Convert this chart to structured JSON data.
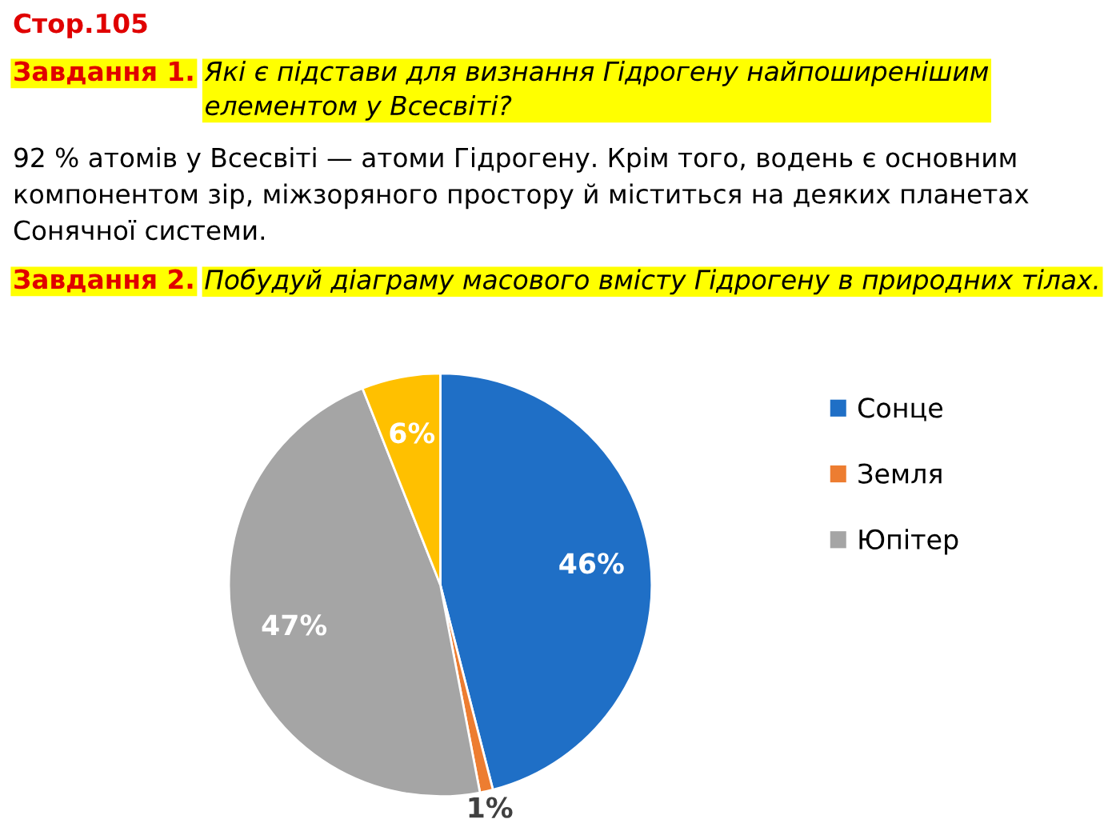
{
  "chart_data": {
    "type": "pie",
    "title": "Стор.105",
    "annotations": [
      "Завдання 1.",
      "Які є підстави для визнання Гідрогену найпоширенішим елементом у Всесвіті?",
      "92 % атомів у Всесвіті — атоми Гідрогену. Крім того, водень є основним компонентом зір, міжзоряного простору й міститься на деяких планетах Сонячної системи.",
      "Завдання 2.",
      "Побудуй діаграму масового вмісту Гідрогену в природних тілах."
    ],
    "categories": [
      "Сонце",
      "Земля",
      "Юпітер",
      null
    ],
    "values": [
      46,
      1,
      47,
      6
    ],
    "value_labels": [
      "46%",
      "1%",
      "47%",
      "6%"
    ],
    "colors": [
      "#1f6fc6",
      "#ed7d31",
      "#a5a5a5",
      "#ffc000"
    ],
    "legend": "right"
  }
}
